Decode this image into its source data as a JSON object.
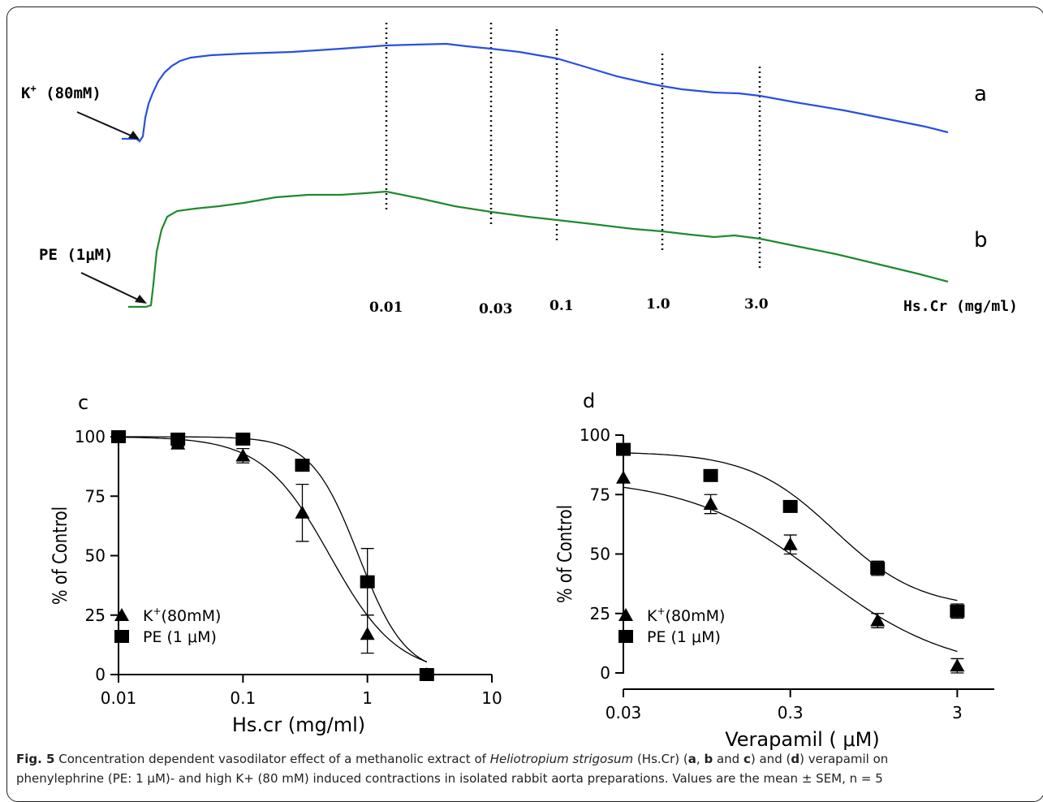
{
  "chart_data": [
    {
      "panel": "a",
      "type": "line",
      "description_text": {
        "stimulus_label": "K",
        "stimulus_sup": "+",
        "stimulus_rest": " (80mM)",
        "panel_label": "a"
      }
    },
    {
      "panel": "b",
      "type": "line",
      "description_text": {
        "stimulus_label": "PE (1μM)",
        "panel_label": "b"
      }
    },
    {
      "panel": "a-b-axis",
      "type": "line",
      "tick_labels": [
        "0.01",
        "0.03",
        "0.1",
        "1.0",
        "3.0"
      ],
      "xlabel": "Hs.Cr (mg/ml)"
    },
    {
      "panel": "c",
      "type": "scatter",
      "panel_label": "c",
      "xscale": "log",
      "xlim": [
        0.01,
        10
      ],
      "ylim": [
        0,
        100
      ],
      "xticks": [
        0.01,
        0.1,
        1,
        10
      ],
      "xtick_labels": [
        "0.01",
        "0.1",
        "1",
        "10"
      ],
      "yticks": [
        0,
        25,
        50,
        75,
        100
      ],
      "ytick_labels": [
        "0",
        "25",
        "50",
        "75",
        "100"
      ],
      "xlabel": "Hs.cr (mg/ml)",
      "ylabel": "% of Control",
      "legend_position": "bottom-left",
      "series": [
        {
          "name_main": "K",
          "name_sup": "+",
          "name_rest": "(80mM)",
          "marker": "triangle",
          "x": [
            0.03,
            0.1,
            0.3,
            1,
            3
          ],
          "y": [
            97,
            92,
            68,
            17,
            0
          ],
          "sem": [
            1,
            3,
            12,
            8,
            0
          ],
          "curve": {
            "top": 100,
            "bottom": 0,
            "ec50": 0.5,
            "hill": 1.6
          }
        },
        {
          "name_main": "PE (1 μM)",
          "marker": "square",
          "x": [
            0.01,
            0.03,
            0.1,
            0.3,
            1,
            3
          ],
          "y": [
            100,
            99,
            99,
            88,
            39,
            0
          ],
          "sem": [
            0,
            1,
            1,
            1,
            14,
            0
          ],
          "curve": {
            "top": 100,
            "bottom": 0,
            "ec50": 0.85,
            "hill": 2.3
          }
        }
      ]
    },
    {
      "panel": "d",
      "type": "scatter",
      "panel_label": "d",
      "xscale": "log",
      "xlim": [
        0.03,
        5
      ],
      "ylim": [
        0,
        100
      ],
      "xticks": [
        0.03,
        0.3,
        3
      ],
      "xtick_labels": [
        "0.03",
        "0.3",
        "3"
      ],
      "yticks": [
        0,
        25,
        50,
        75,
        100
      ],
      "ytick_labels": [
        "0",
        "25",
        "50",
        "75",
        "100"
      ],
      "xlabel": "Verapamil ( μM)",
      "ylabel": "% of Control",
      "legend_position": "bottom-left",
      "series": [
        {
          "name_main": "K",
          "name_sup": "+",
          "name_rest": "(80mM)",
          "marker": "triangle",
          "x": [
            0.03,
            0.1,
            0.3,
            1,
            3
          ],
          "y": [
            82,
            71,
            54,
            22,
            3
          ],
          "sem": [
            0,
            4,
            4,
            3,
            3
          ],
          "curve": {
            "top": 82,
            "bottom": 0,
            "ec50": 0.45,
            "hill": 1.1
          }
        },
        {
          "name_main": "PE (1 μM)",
          "marker": "square",
          "x": [
            0.03,
            0.1,
            0.3,
            1,
            3
          ],
          "y": [
            94,
            83,
            70,
            44,
            26
          ],
          "sem": [
            2,
            2,
            1,
            3,
            3
          ],
          "curve": {
            "top": 93,
            "bottom": 27,
            "ec50": 0.55,
            "hill": 1.7
          }
        }
      ]
    }
  ],
  "caption": {
    "fig": "Fig. 5",
    "t1": " Concentration dependent vasodilator effect of a methanolic extract of ",
    "species": "Heliotropium strigosum",
    "t2": " (Hs.Cr) (",
    "a": "a",
    "sep1": ", ",
    "b": "b",
    "sep2": " and ",
    "c": "c",
    "t3": ") and (",
    "d": "d",
    "t4": ") verapamil on",
    "line2": "phenylephrine (PE: 1 μM)- and high K+ (80 mM) induced contractions in isolated rabbit aorta preparations. Values are the mean ± SEM, n = 5"
  }
}
